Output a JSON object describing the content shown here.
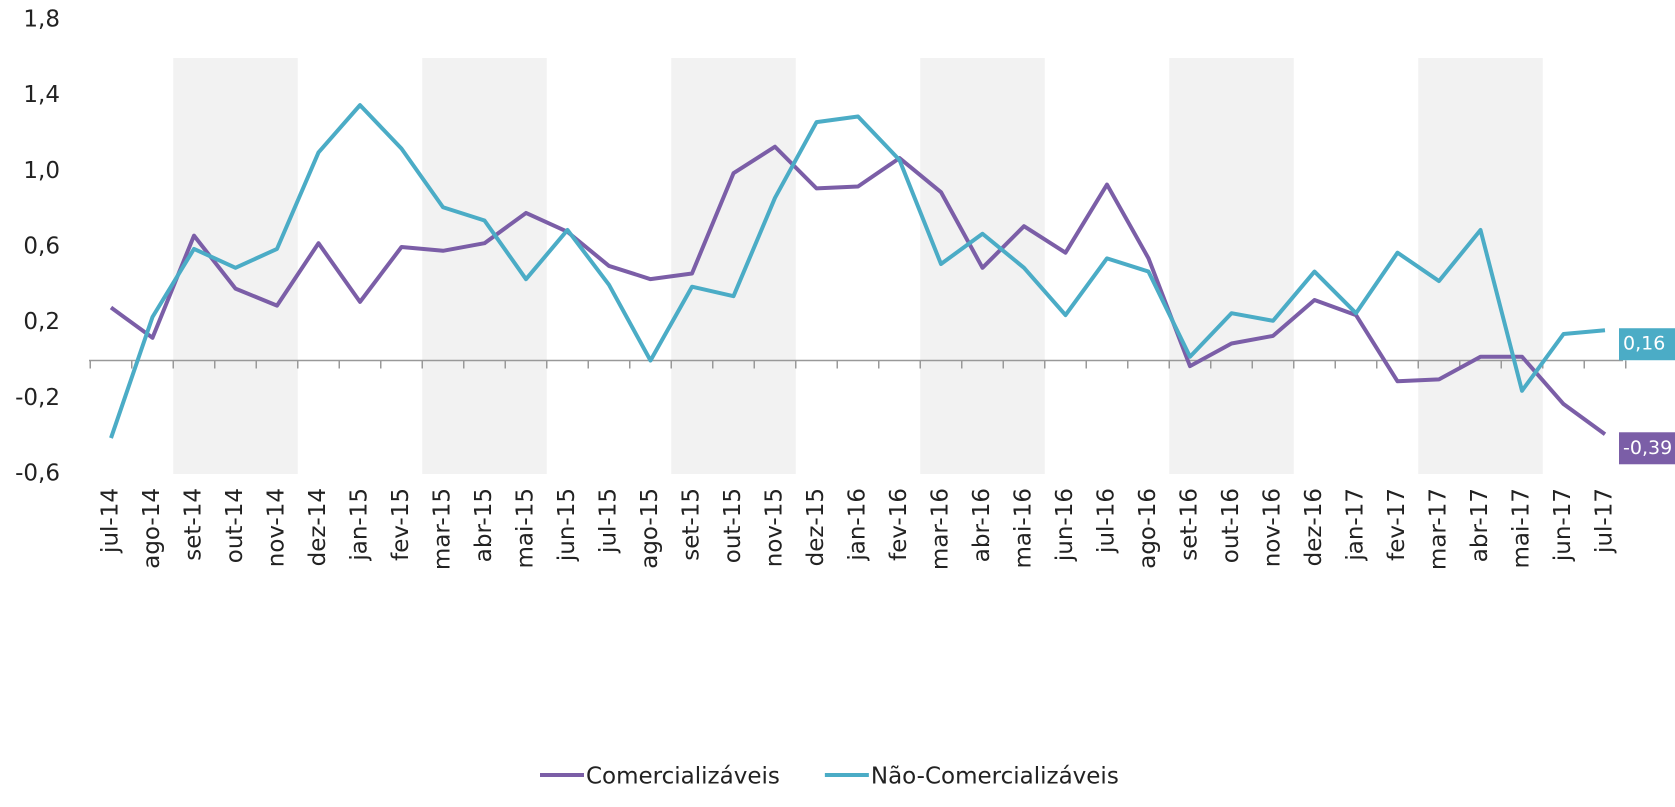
{
  "chart_data": {
    "type": "line",
    "categories": [
      "jul-14",
      "ago-14",
      "set-14",
      "out-14",
      "nov-14",
      "dez-14",
      "jan-15",
      "fev-15",
      "mar-15",
      "abr-15",
      "mai-15",
      "jun-15",
      "jul-15",
      "ago-15",
      "set-15",
      "out-15",
      "nov-15",
      "dez-15",
      "jan-16",
      "fev-16",
      "mar-16",
      "abr-16",
      "mai-16",
      "jun-16",
      "jul-16",
      "ago-16",
      "set-16",
      "out-16",
      "nov-16",
      "dez-16",
      "jan-17",
      "fev-17",
      "mar-17",
      "abr-17",
      "mai-17",
      "jun-17",
      "jul-17"
    ],
    "series": [
      {
        "name": "Comercializáveis",
        "color": "#7b5ea7",
        "values": [
          0.28,
          0.12,
          0.66,
          0.38,
          0.29,
          0.62,
          0.31,
          0.6,
          0.58,
          0.62,
          0.78,
          0.68,
          0.5,
          0.43,
          0.46,
          0.99,
          1.13,
          0.91,
          0.92,
          1.07,
          0.89,
          0.49,
          0.71,
          0.57,
          0.93,
          0.54,
          -0.03,
          0.09,
          0.13,
          0.32,
          0.24,
          -0.11,
          -0.1,
          0.02,
          0.02,
          -0.23,
          -0.39
        ],
        "value_labels": [
          null,
          null,
          null,
          null,
          null,
          null,
          null,
          null,
          null,
          null,
          null,
          null,
          null,
          null,
          null,
          null,
          null,
          null,
          null,
          null,
          null,
          null,
          null,
          null,
          null,
          null,
          null,
          null,
          null,
          null,
          null,
          null,
          null,
          null,
          null,
          null,
          "-0,39"
        ]
      },
      {
        "name": "Não-Comercializáveis",
        "color": "#4bacc6",
        "values": [
          -0.41,
          0.23,
          0.59,
          0.49,
          0.59,
          1.1,
          1.35,
          1.12,
          0.81,
          0.74,
          0.43,
          0.69,
          0.4,
          0.0,
          0.39,
          0.34,
          0.86,
          1.26,
          1.29,
          1.06,
          0.51,
          0.67,
          0.49,
          0.24,
          0.54,
          0.47,
          0.02,
          0.25,
          0.21,
          0.47,
          0.25,
          0.57,
          0.42,
          0.69,
          -0.16,
          0.14,
          0.16
        ],
        "value_labels": [
          null,
          null,
          null,
          null,
          null,
          null,
          null,
          null,
          null,
          null,
          null,
          null,
          null,
          null,
          null,
          null,
          null,
          null,
          null,
          null,
          null,
          null,
          null,
          null,
          null,
          null,
          null,
          null,
          null,
          null,
          null,
          null,
          null,
          null,
          null,
          null,
          "0,16"
        ]
      }
    ],
    "ylim": [
      -0.6,
      1.8
    ],
    "yticks": [
      {
        "value": -0.6,
        "label": "-0,6"
      },
      {
        "value": -0.2,
        "label": "-0,2"
      },
      {
        "value": 0.2,
        "label": "0,2"
      },
      {
        "value": 0.6,
        "label": "0,6"
      },
      {
        "value": 1.0,
        "label": "1,0"
      },
      {
        "value": 1.4,
        "label": "1,4"
      },
      {
        "value": 1.8,
        "label": "1,8"
      }
    ],
    "grid": false,
    "legend": "bottom"
  }
}
